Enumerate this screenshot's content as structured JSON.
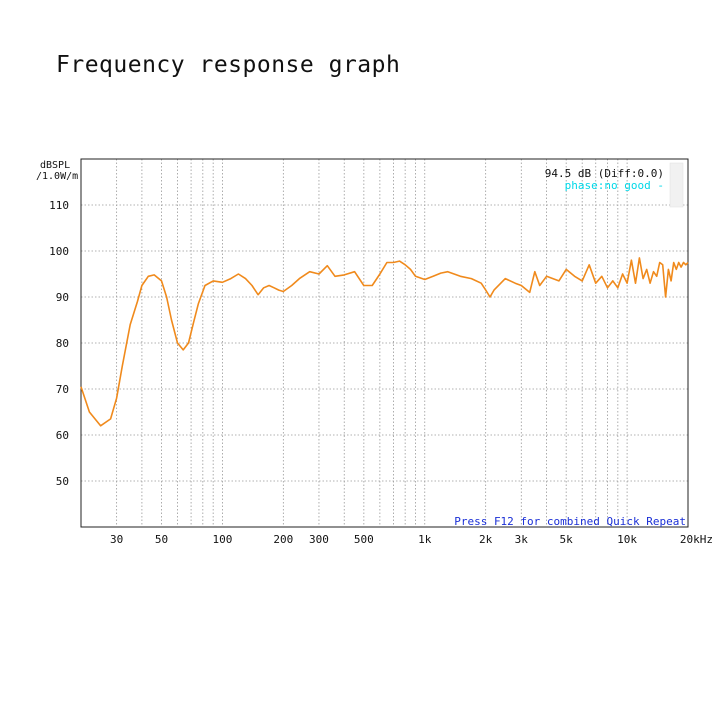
{
  "page": {
    "title": "Frequency response graph"
  },
  "chart_data": {
    "type": "line",
    "ylabel_line1": "dBSPL",
    "ylabel_line2": "/1.0W/m",
    "x_scale": "log",
    "xlim": [
      20,
      20000
    ],
    "ylim": [
      40,
      120
    ],
    "grid": true,
    "x_ticks": [
      {
        "value": 30,
        "label": "30"
      },
      {
        "value": 50,
        "label": "50"
      },
      {
        "value": 100,
        "label": "100"
      },
      {
        "value": 200,
        "label": "200"
      },
      {
        "value": 300,
        "label": "300"
      },
      {
        "value": 500,
        "label": "500"
      },
      {
        "value": 1000,
        "label": "1k"
      },
      {
        "value": 2000,
        "label": "2k"
      },
      {
        "value": 3000,
        "label": "3k"
      },
      {
        "value": 5000,
        "label": "5k"
      },
      {
        "value": 10000,
        "label": "10k"
      },
      {
        "value": 20000,
        "label": "20kHz"
      }
    ],
    "y_ticks": [
      50,
      60,
      70,
      80,
      90,
      100,
      110
    ],
    "annotations": {
      "readout": "94.5 dB (Diff:0.0)",
      "phase_note": "phase:no good -",
      "hint": "Press F12 for combined Quick Repeat"
    },
    "colors": {
      "curve": "#f08a1c",
      "phase_note": "#00d8e8",
      "hint": "#1a2fd6",
      "grid": "#999999"
    },
    "series": [
      {
        "x": [
          20,
          22,
          25,
          28,
          30,
          32,
          35,
          38,
          40,
          43,
          46,
          50,
          53,
          56,
          60,
          64,
          68,
          72,
          76,
          82,
          90,
          100,
          110,
          120,
          130,
          140,
          150,
          160,
          170,
          180,
          190,
          200,
          220,
          240,
          270,
          300,
          330,
          360,
          400,
          450,
          500,
          550,
          600,
          650,
          700,
          750,
          800,
          850,
          900,
          1000,
          1100,
          1200,
          1300,
          1500,
          1700,
          1900,
          2000,
          2100,
          2200,
          2500,
          2800,
          3000,
          3300,
          3500,
          3700,
          4000,
          4300,
          4600,
          5000,
          5500,
          6000,
          6500,
          7000,
          7500,
          8000,
          8500,
          9000,
          9500,
          10000,
          10500,
          11000,
          11500,
          12000,
          12500,
          13000,
          13500,
          14000,
          14500,
          15000,
          15500,
          16000,
          16500,
          17000,
          17500,
          18000,
          18500,
          19000,
          19500,
          20000
        ],
        "y": [
          70.5,
          65,
          62,
          63.5,
          68,
          75,
          84,
          89,
          92.5,
          94.5,
          94.8,
          93.5,
          90,
          85,
          80,
          78.5,
          80,
          84.5,
          88.5,
          92.5,
          93.5,
          93.2,
          94,
          95,
          94,
          92.5,
          90.5,
          92,
          92.5,
          92,
          91.5,
          91.2,
          92.5,
          94,
          95.5,
          95,
          96.8,
          94.5,
          94.8,
          95.5,
          92.5,
          92.5,
          95,
          97.5,
          97.5,
          97.8,
          97,
          96,
          94.5,
          93.8,
          94.5,
          95.2,
          95.5,
          94.5,
          94,
          93,
          91.5,
          90,
          91.5,
          94,
          93,
          92.5,
          91,
          95.5,
          92.5,
          94.5,
          94,
          93.5,
          96,
          94.5,
          93.5,
          97,
          93,
          94.5,
          92,
          93.5,
          92,
          95,
          93,
          98,
          93,
          98.5,
          94,
          96,
          93,
          95.5,
          94.5,
          97.5,
          97,
          90,
          96,
          93.5,
          97.5,
          96,
          97.5,
          96.5,
          97.5,
          97,
          97.5
        ]
      }
    ]
  }
}
